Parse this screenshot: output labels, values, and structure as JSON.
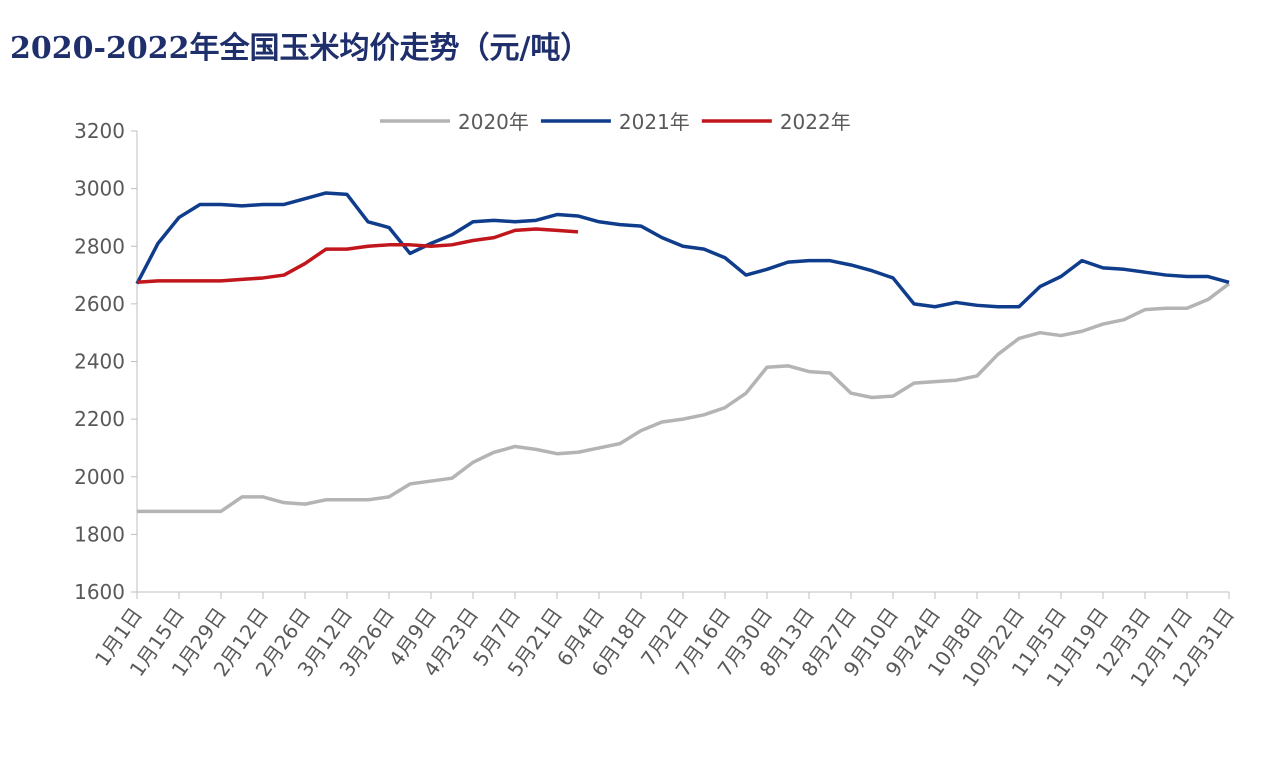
{
  "chart_data": {
    "type": "line",
    "title": "2020-2022年全国玉米均价走势（元/吨）",
    "categories": [
      "1月1日",
      null,
      "1月15日",
      null,
      "1月29日",
      null,
      "2月12日",
      null,
      "2月26日",
      null,
      "3月12日",
      null,
      "3月26日",
      null,
      "4月9日",
      null,
      "4月23日",
      null,
      "5月7日",
      null,
      "5月21日",
      null,
      "6月4日",
      null,
      "6月18日",
      null,
      "7月2日",
      null,
      "7月16日",
      null,
      "7月30日",
      null,
      "8月13日",
      null,
      "8月27日",
      null,
      "9月10日",
      null,
      "9月24日",
      null,
      "10月8日",
      null,
      "10月22日",
      null,
      "11月5日",
      null,
      "11月19日",
      null,
      "12月3日",
      null,
      "12月17日",
      null,
      "12月31日"
    ],
    "series": [
      {
        "name": "2020年",
        "color": "#b4b4b4",
        "values": [
          1880,
          1880,
          1880,
          1880,
          1880,
          1930,
          1930,
          1910,
          1905,
          1920,
          1920,
          1920,
          1930,
          1975,
          1985,
          1995,
          2050,
          2085,
          2105,
          2095,
          2080,
          2085,
          2100,
          2115,
          2160,
          2190,
          2200,
          2215,
          2240,
          2290,
          2380,
          2385,
          2365,
          2360,
          2290,
          2275,
          2280,
          2325,
          2330,
          2335,
          2350,
          2425,
          2480,
          2500,
          2490,
          2505,
          2530,
          2545,
          2580,
          2585,
          2585,
          2615,
          2670
        ]
      },
      {
        "name": "2021年",
        "color": "#0f3d8c",
        "values": [
          2670,
          2810,
          2900,
          2945,
          2945,
          2940,
          2945,
          2945,
          2965,
          2985,
          2980,
          2885,
          2865,
          2775,
          2810,
          2840,
          2885,
          2890,
          2885,
          2890,
          2910,
          2905,
          2885,
          2875,
          2870,
          2830,
          2800,
          2790,
          2760,
          2700,
          2720,
          2745,
          2750,
          2750,
          2735,
          2715,
          2690,
          2600,
          2590,
          2605,
          2595,
          2590,
          2590,
          2660,
          2695,
          2750,
          2725,
          2720,
          2710,
          2700,
          2695,
          2695,
          2675
        ]
      },
      {
        "name": "2022年",
        "color": "#c0161c",
        "values": [
          2675,
          2680,
          2680,
          2680,
          2680,
          2685,
          2690,
          2700,
          2740,
          2790,
          2790,
          2800,
          2805,
          2805,
          2800,
          2805,
          2820,
          2830,
          2855,
          2860,
          2855,
          2850,
          null,
          null,
          null,
          null,
          null,
          null,
          null,
          null,
          null,
          null,
          null,
          null,
          null,
          null,
          null,
          null,
          null,
          null,
          null,
          null,
          null,
          null,
          null,
          null,
          null,
          null,
          null,
          null,
          null,
          null,
          null
        ]
      }
    ],
    "ylim": [
      1600,
      3200
    ],
    "yticks": [
      1600,
      1800,
      2000,
      2200,
      2400,
      2600,
      2800,
      3000,
      3200
    ],
    "grid": false,
    "legend": "top"
  }
}
